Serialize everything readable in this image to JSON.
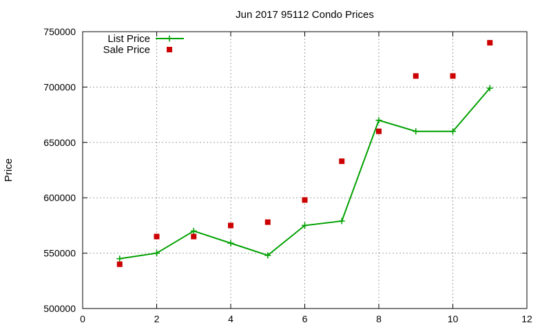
{
  "chart_data": {
    "type": "line",
    "title": "Jun 2017 95112 Condo Prices",
    "xlabel": "",
    "ylabel": "Price",
    "xlim": [
      0,
      12
    ],
    "ylim": [
      500000,
      750000
    ],
    "xticks": [
      0,
      2,
      4,
      6,
      8,
      10,
      12
    ],
    "yticks": [
      500000,
      550000,
      600000,
      650000,
      700000,
      750000
    ],
    "grid": true,
    "legend_position": "top-left",
    "series": [
      {
        "name": "List Price",
        "style": "line-with-plus-markers",
        "color": "#00a000",
        "x": [
          1,
          2,
          3,
          4,
          5,
          6,
          7,
          8,
          9,
          10,
          11
        ],
        "y": [
          545000,
          550000,
          570000,
          559000,
          548000,
          575000,
          579000,
          670000,
          660000,
          660000,
          699000
        ]
      },
      {
        "name": "Sale Price",
        "style": "square-markers",
        "color": "#cc0000",
        "x": [
          1,
          2,
          3,
          4,
          5,
          6,
          7,
          8,
          9,
          10,
          11
        ],
        "y": [
          540000,
          565000,
          565000,
          575000,
          578000,
          598000,
          633000,
          660000,
          710000,
          710000,
          740000
        ]
      }
    ]
  }
}
